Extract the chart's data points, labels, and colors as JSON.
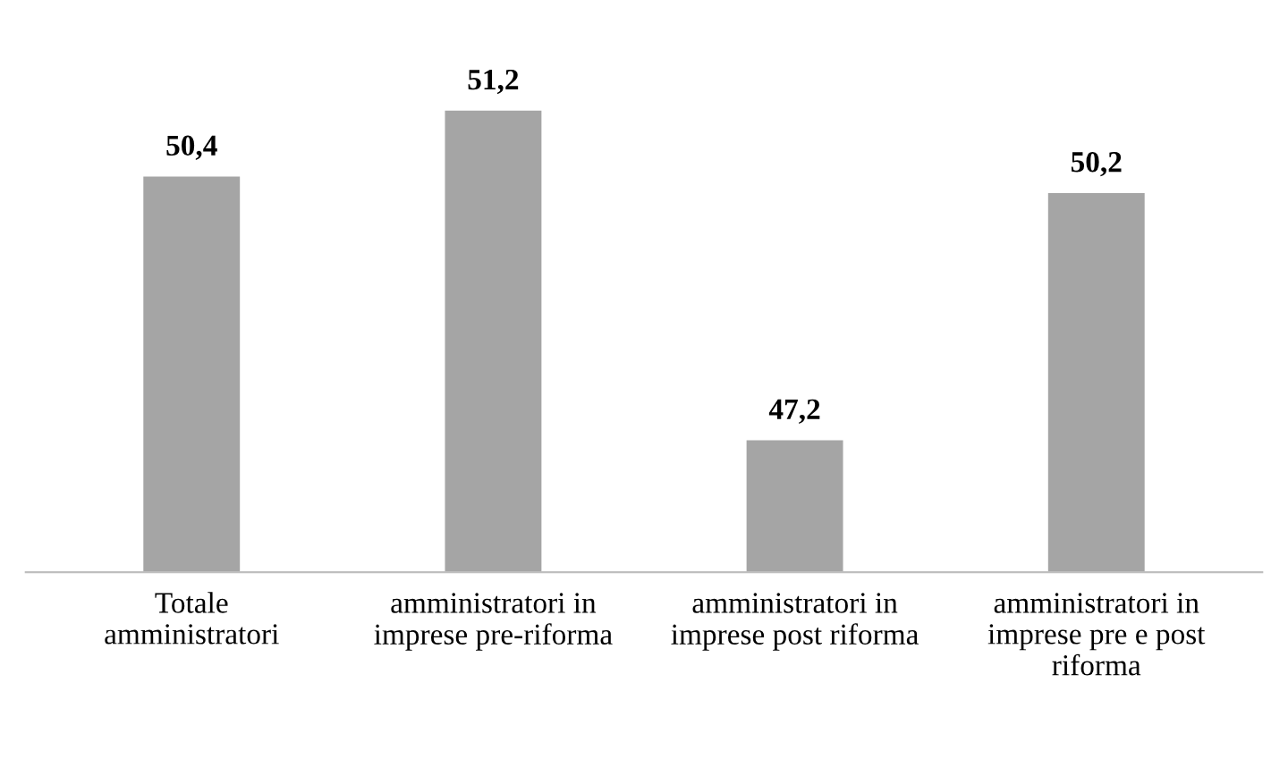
{
  "chart_data": {
    "type": "bar",
    "categories": [
      "Totale\namministratori",
      "amministratori in\nimprese pre-riforma",
      "amministratori in\nimprese post riforma",
      "amministratori in\nimprese pre e post\nriforma"
    ],
    "values": [
      50.4,
      51.2,
      47.2,
      50.2
    ],
    "value_labels": [
      "50,4",
      "51,2",
      "47,2",
      "50,2"
    ],
    "color": "#a5a5a5",
    "grid": false,
    "legend": false
  }
}
